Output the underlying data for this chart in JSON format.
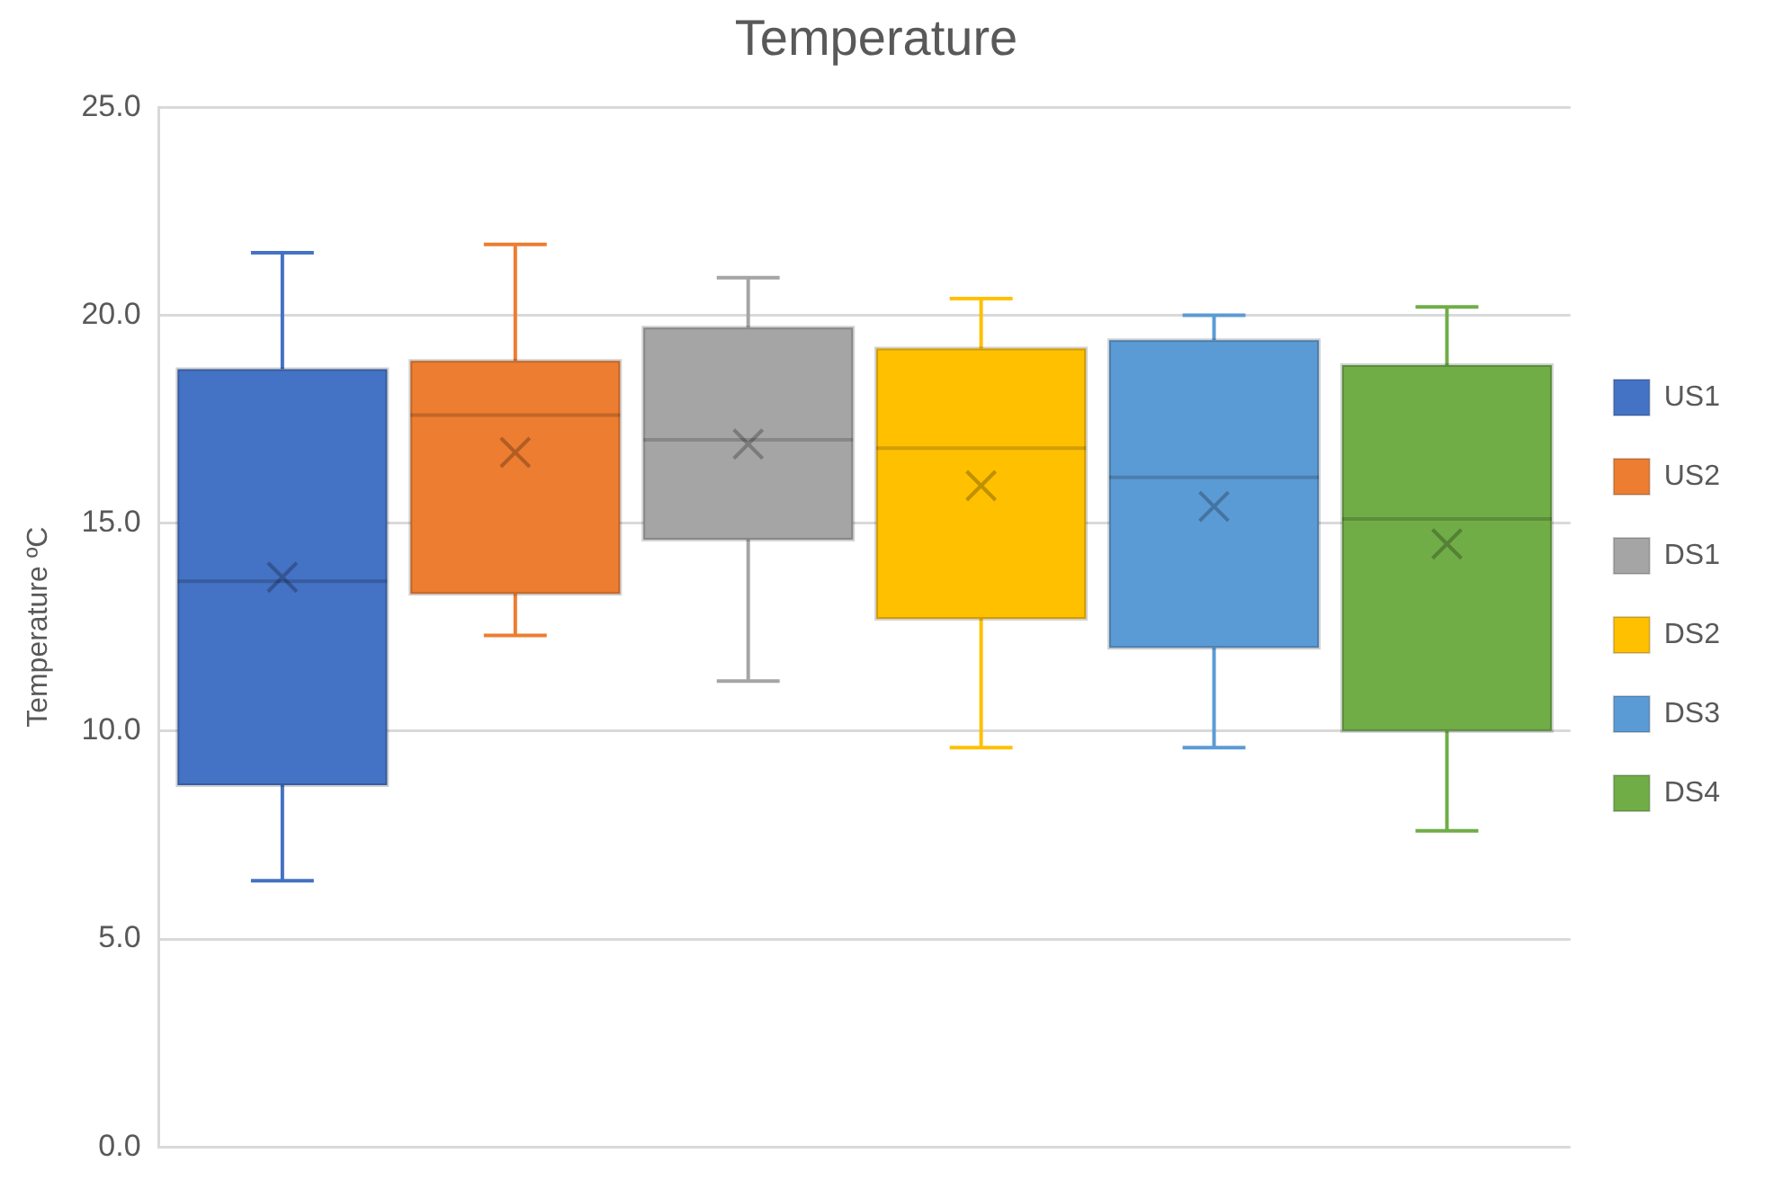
{
  "chart_data": {
    "type": "box",
    "title": "Temperature",
    "ylabel": "Temperature ºC",
    "categories": [
      null
    ],
    "ylim": [
      0,
      25
    ],
    "yticks": [
      {
        "value": 0,
        "label": "0.0"
      },
      {
        "value": 5,
        "label": "5.0"
      },
      {
        "value": 10,
        "label": "10.0"
      },
      {
        "value": 15,
        "label": "15.0"
      },
      {
        "value": 20,
        "label": "20.0"
      },
      {
        "value": 25,
        "label": "25.0"
      }
    ],
    "grid": "y",
    "legend": "right",
    "marker": "cross",
    "series": [
      {
        "name": "US1",
        "color": "#4472c4",
        "boxes": [
          {
            "low": 6.4,
            "q1": 8.7,
            "median": 13.6,
            "q3": 18.7,
            "high": 21.5,
            "mean": 13.7
          }
        ]
      },
      {
        "name": "US2",
        "color": "#ed7d31",
        "boxes": [
          {
            "low": 12.3,
            "q1": 13.3,
            "median": 17.6,
            "q3": 18.9,
            "high": 21.7,
            "mean": 16.7
          }
        ]
      },
      {
        "name": "DS1",
        "color": "#a5a5a5",
        "boxes": [
          {
            "low": 11.2,
            "q1": 14.6,
            "median": 17.0,
            "q3": 19.7,
            "high": 20.9,
            "mean": 16.9
          }
        ]
      },
      {
        "name": "DS2",
        "color": "#ffc000",
        "boxes": [
          {
            "low": 9.6,
            "q1": 12.7,
            "median": 16.8,
            "q3": 19.2,
            "high": 20.4,
            "mean": 15.9
          }
        ]
      },
      {
        "name": "DS3",
        "color": "#5b9bd5",
        "boxes": [
          {
            "low": 9.6,
            "q1": 12.0,
            "median": 16.1,
            "q3": 19.4,
            "high": 20.0,
            "mean": 15.4
          }
        ]
      },
      {
        "name": "DS4",
        "color": "#70ad47",
        "boxes": [
          {
            "low": 7.6,
            "q1": 10.0,
            "median": 15.1,
            "q3": 18.8,
            "high": 20.2,
            "mean": 14.5
          }
        ]
      }
    ]
  }
}
